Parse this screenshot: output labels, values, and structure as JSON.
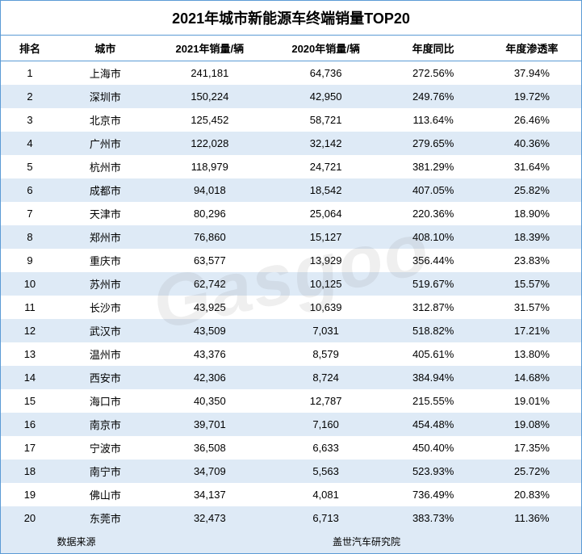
{
  "title": "2021年城市新能源车终端销量TOP20",
  "title_fontsize": 18,
  "header_fontsize": 13,
  "cell_fontsize": 13,
  "footer_fontsize": 12,
  "colors": {
    "border": "#5b9bd5",
    "row_even_bg": "#deeaf6",
    "row_odd_bg": "#ffffff",
    "text": "#000000",
    "watermark": "rgba(120,120,120,0.12)"
  },
  "watermark_text": "Gasgoo",
  "columns": [
    "排名",
    "城市",
    "2021年销量/辆",
    "2020年销量/辆",
    "年度同比",
    "年度渗透率"
  ],
  "column_widths_pct": [
    10,
    16,
    20,
    20,
    17,
    17
  ],
  "rows": [
    {
      "rank": "1",
      "city": "上海市",
      "s2021": "241,181",
      "s2020": "64,736",
      "yoy": "272.56%",
      "pen": "37.94%"
    },
    {
      "rank": "2",
      "city": "深圳市",
      "s2021": "150,224",
      "s2020": "42,950",
      "yoy": "249.76%",
      "pen": "19.72%"
    },
    {
      "rank": "3",
      "city": "北京市",
      "s2021": "125,452",
      "s2020": "58,721",
      "yoy": "113.64%",
      "pen": "26.46%"
    },
    {
      "rank": "4",
      "city": "广州市",
      "s2021": "122,028",
      "s2020": "32,142",
      "yoy": "279.65%",
      "pen": "40.36%"
    },
    {
      "rank": "5",
      "city": "杭州市",
      "s2021": "118,979",
      "s2020": "24,721",
      "yoy": "381.29%",
      "pen": "31.64%"
    },
    {
      "rank": "6",
      "city": "成都市",
      "s2021": "94,018",
      "s2020": "18,542",
      "yoy": "407.05%",
      "pen": "25.82%"
    },
    {
      "rank": "7",
      "city": "天津市",
      "s2021": "80,296",
      "s2020": "25,064",
      "yoy": "220.36%",
      "pen": "18.90%"
    },
    {
      "rank": "8",
      "city": "郑州市",
      "s2021": "76,860",
      "s2020": "15,127",
      "yoy": "408.10%",
      "pen": "18.39%"
    },
    {
      "rank": "9",
      "city": "重庆市",
      "s2021": "63,577",
      "s2020": "13,929",
      "yoy": "356.44%",
      "pen": "23.83%"
    },
    {
      "rank": "10",
      "city": "苏州市",
      "s2021": "62,742",
      "s2020": "10,125",
      "yoy": "519.67%",
      "pen": "15.57%"
    },
    {
      "rank": "11",
      "city": "长沙市",
      "s2021": "43,925",
      "s2020": "10,639",
      "yoy": "312.87%",
      "pen": "31.57%"
    },
    {
      "rank": "12",
      "city": "武汉市",
      "s2021": "43,509",
      "s2020": "7,031",
      "yoy": "518.82%",
      "pen": "17.21%"
    },
    {
      "rank": "13",
      "city": "温州市",
      "s2021": "43,376",
      "s2020": "8,579",
      "yoy": "405.61%",
      "pen": "13.80%"
    },
    {
      "rank": "14",
      "city": "西安市",
      "s2021": "42,306",
      "s2020": "8,724",
      "yoy": "384.94%",
      "pen": "14.68%"
    },
    {
      "rank": "15",
      "city": "海口市",
      "s2021": "40,350",
      "s2020": "12,787",
      "yoy": "215.55%",
      "pen": "19.01%"
    },
    {
      "rank": "16",
      "city": "南京市",
      "s2021": "39,701",
      "s2020": "7,160",
      "yoy": "454.48%",
      "pen": "19.08%"
    },
    {
      "rank": "17",
      "city": "宁波市",
      "s2021": "36,508",
      "s2020": "6,633",
      "yoy": "450.40%",
      "pen": "17.35%"
    },
    {
      "rank": "18",
      "city": "南宁市",
      "s2021": "34,709",
      "s2020": "5,563",
      "yoy": "523.93%",
      "pen": "25.72%"
    },
    {
      "rank": "19",
      "city": "佛山市",
      "s2021": "34,137",
      "s2020": "4,081",
      "yoy": "736.49%",
      "pen": "20.83%"
    },
    {
      "rank": "20",
      "city": "东莞市",
      "s2021": "32,473",
      "s2020": "6,713",
      "yoy": "383.73%",
      "pen": "11.36%"
    }
  ],
  "footer": {
    "left_label": "数据来源",
    "right_label": "盖世汽车研究院"
  }
}
